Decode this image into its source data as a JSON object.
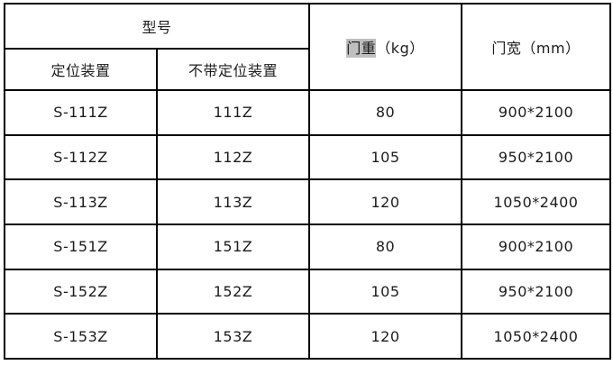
{
  "page": {
    "background": "#ffffff",
    "border_color": "#000000",
    "text_color": "#1c1c1c",
    "highlight_color": "#bfbfbf"
  },
  "table": {
    "header": {
      "model_group": "型号",
      "col_with_positioning": "定位装置",
      "col_without_positioning": "不带定位装置",
      "door_weight_highlight": "门重",
      "door_weight_unit": "（kg）",
      "door_width": "门宽（mm）"
    },
    "rows": [
      {
        "model_with": "S-111Z",
        "model_without": "111Z",
        "door_weight_kg": "80",
        "door_width_mm": "900*2100"
      },
      {
        "model_with": "S-112Z",
        "model_without": "112Z",
        "door_weight_kg": "105",
        "door_width_mm": "950*2100"
      },
      {
        "model_with": "S-113Z",
        "model_without": "113Z",
        "door_weight_kg": "120",
        "door_width_mm": "1050*2400"
      },
      {
        "model_with": "S-151Z",
        "model_without": "151Z",
        "door_weight_kg": "80",
        "door_width_mm": "900*2100"
      },
      {
        "model_with": "S-152Z",
        "model_without": "152Z",
        "door_weight_kg": "105",
        "door_width_mm": "950*2100"
      },
      {
        "model_with": "S-153Z",
        "model_without": "153Z",
        "door_weight_kg": "120",
        "door_width_mm": "1050*2400"
      }
    ]
  }
}
